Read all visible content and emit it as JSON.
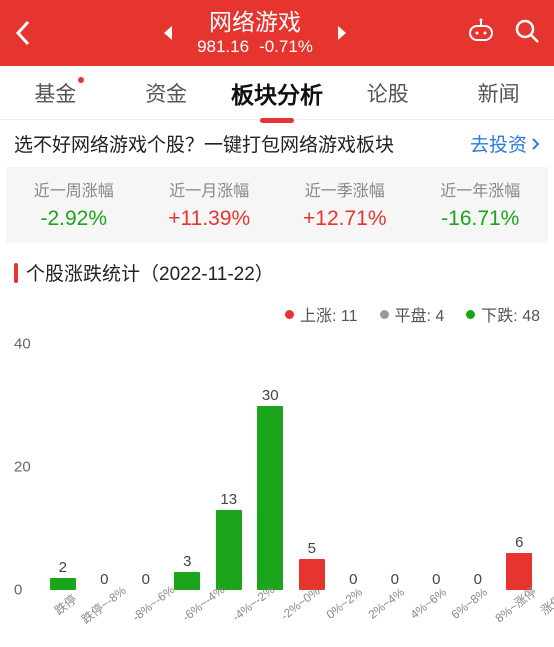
{
  "colors": {
    "brand": "#e6352f",
    "up": "#e6352f",
    "down": "#1aa51a",
    "flat": "#9a9a9a",
    "bg": "#ffffff",
    "axis_text": "#666666"
  },
  "header": {
    "title": "网络游戏",
    "index_value": "981.16",
    "change_pct": "-0.71%"
  },
  "tabs": [
    {
      "label": "基金",
      "active": false,
      "badge": true
    },
    {
      "label": "资金",
      "active": false,
      "badge": false
    },
    {
      "label": "板块分析",
      "active": true,
      "badge": false
    },
    {
      "label": "论股",
      "active": false,
      "badge": false
    },
    {
      "label": "新闻",
      "active": false,
      "badge": false
    }
  ],
  "promo": {
    "text": "选不好网络游戏个股？一键打包网络游戏板块",
    "link_label": "去投资"
  },
  "period_stats": [
    {
      "label": "近一周涨幅",
      "value": "-2.92%",
      "dir": "down"
    },
    {
      "label": "近一月涨幅",
      "value": "+11.39%",
      "dir": "up"
    },
    {
      "label": "近一季涨幅",
      "value": "+12.71%",
      "dir": "up"
    },
    {
      "label": "近一年涨幅",
      "value": "-16.71%",
      "dir": "down"
    }
  ],
  "section": {
    "title_prefix": "个股涨跌统计",
    "date": "2022-11-22"
  },
  "legend": {
    "up_label": "上涨",
    "up_count": 11,
    "flat_label": "平盘",
    "flat_count": 4,
    "down_label": "下跌",
    "down_count": 48
  },
  "chart": {
    "type": "bar",
    "ylim": [
      0,
      40
    ],
    "yticks": [
      0,
      20,
      40
    ],
    "bar_width_pct": 62,
    "categories": [
      "跌停",
      "跌停~-8%",
      "-8%~-6%",
      "-6%~-4%",
      "-4%~-2%",
      "-2%~0%",
      "0%~2%",
      "2%~4%",
      "4%~6%",
      "6%~8%",
      "8%~涨停",
      "涨停"
    ],
    "values": [
      2,
      0,
      0,
      3,
      13,
      30,
      5,
      0,
      0,
      0,
      0,
      6
    ],
    "bar_colors": [
      "#1aa51a",
      "#1aa51a",
      "#1aa51a",
      "#1aa51a",
      "#1aa51a",
      "#1aa51a",
      "#e6352f",
      "#e6352f",
      "#e6352f",
      "#e6352f",
      "#e6352f",
      "#e6352f"
    ],
    "label_fontsize": 12,
    "value_fontsize": 15
  }
}
